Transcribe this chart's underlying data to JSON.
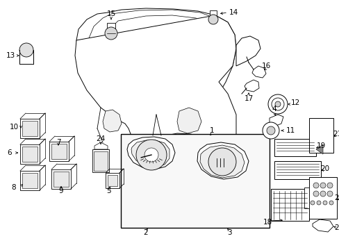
{
  "bg_color": "#ffffff",
  "fig_width": 4.89,
  "fig_height": 3.6,
  "dpi": 100,
  "lc": "#000000",
  "lw": 0.7,
  "fs": 7.5
}
